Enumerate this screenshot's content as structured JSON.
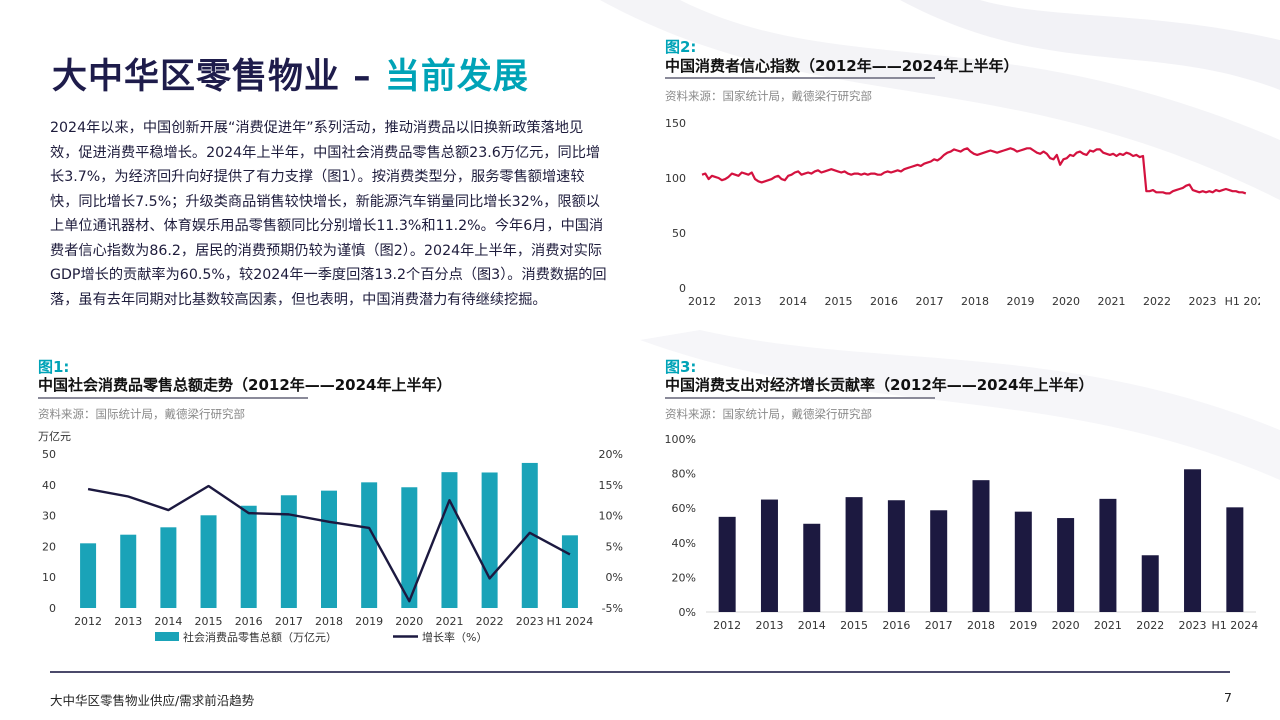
{
  "title": {
    "main": "大中华区零售物业 – ",
    "accent": "当前发展"
  },
  "body_text": "2024年以来，中国创新开展“消费促进年”系列活动，推动消费品以旧换新政策落地见效，促进消费平稳增长。2024年上半年，中国社会消费品零售总额23.6万亿元，同比增长3.7%，为经济回升向好提供了有力支撑（图1）。按消费类型分，服务零售额增速较快，同比增长7.5%；升级类商品销售较快增长，新能源汽车销量同比增长32%，限额以上单位通讯器材、体育娱乐用品零售额同比分别增长11.3%和11.2%。今年6月，中国消费者信心指数为86.2，居民的消费预期仍较为谨慎（图2）。2024年上半年，消费对实际GDP增长的贡献率为60.5%，较2024年一季度回落13.2个百分点（图3）。消费数据的回落，虽有去年同期对比基数较高因素，但也表明，中国消费潜力有待继续挖掘。",
  "fig1": {
    "label": "图1:",
    "title": "中国社会消费品零售总额走势（2012年——2024年上半年）",
    "source": "资料来源：国际统计局，戴德梁行研究部",
    "unit": "万亿元"
  },
  "fig2": {
    "label": "图2:",
    "title": "中国消费者信心指数（2012年——2024年上半年）",
    "source": "资料来源：国家统计局，戴德梁行研究部"
  },
  "fig3": {
    "label": "图3:",
    "title": "中国消费支出对经济增长贡献率（2012年——2024年上半年）",
    "source": "资料来源：国家统计局，戴德梁行研究部"
  },
  "footer": {
    "text": "大中华区零售物业供应/需求前沿趋势",
    "page": "7"
  },
  "colors": {
    "accent": "#00a3b7",
    "navy": "#1e1c4b",
    "teal_bar": "#1aa3b8",
    "red_line": "#d4123f",
    "dark_bar": "#1c1940"
  },
  "chart_data": [
    {
      "id": "fig1",
      "type": "bar+line",
      "categories": [
        "2012",
        "2013",
        "2014",
        "2015",
        "2016",
        "2017",
        "2018",
        "2019",
        "2020",
        "2021",
        "2022",
        "2023",
        "H1 2024"
      ],
      "series": [
        {
          "name": "社会消费品零售总额（万亿元）",
          "type": "bar",
          "axis": "left",
          "values": [
            21.0,
            23.8,
            26.2,
            30.1,
            33.2,
            36.6,
            38.1,
            40.8,
            39.2,
            44.1,
            44.0,
            47.1,
            23.6
          ]
        },
        {
          "name": "增长率（%）",
          "type": "line",
          "axis": "right",
          "values": [
            14.3,
            13.1,
            10.9,
            14.8,
            10.4,
            10.2,
            9.0,
            8.0,
            -3.9,
            12.5,
            -0.2,
            7.2,
            3.7
          ]
        }
      ],
      "left_ticks": [
        "0",
        "10",
        "20",
        "30",
        "40",
        "50"
      ],
      "ylim_left": [
        0,
        50
      ],
      "right_ticks": [
        "-5%",
        "0%",
        "5%",
        "10%",
        "15%",
        "20%"
      ],
      "ylim_right": [
        -5,
        20
      ],
      "legend_position": "bottom"
    },
    {
      "id": "fig2",
      "type": "line",
      "x_ticks": [
        "2012",
        "2013",
        "2014",
        "2015",
        "2016",
        "2017",
        "2018",
        "2019",
        "2020",
        "2021",
        "2022",
        "2023",
        "H1 2024"
      ],
      "ylim": [
        0,
        150
      ],
      "y_ticks": [
        "0",
        "50",
        "100",
        "150"
      ],
      "values": [
        103,
        104,
        99,
        102,
        101,
        100,
        98,
        99,
        101,
        104,
        103,
        102,
        105,
        104,
        103,
        105,
        99,
        97,
        96,
        97,
        98,
        99,
        101,
        102,
        99,
        98,
        102,
        103,
        105,
        106,
        103,
        104,
        105,
        104,
        106,
        107,
        105,
        106,
        107,
        108,
        107,
        106,
        105,
        106,
        104,
        103,
        104,
        104,
        103,
        104,
        103,
        104,
        104,
        103,
        103,
        105,
        106,
        105,
        106,
        107,
        106,
        108,
        109,
        110,
        111,
        112,
        111,
        113,
        114,
        115,
        117,
        116,
        118,
        121,
        123,
        124,
        126,
        125,
        124,
        126,
        127,
        124,
        122,
        121,
        122,
        123,
        124,
        125,
        124,
        123,
        124,
        125,
        126,
        127,
        126,
        124,
        125,
        126,
        127,
        127,
        125,
        123,
        122,
        124,
        122,
        118,
        117,
        121,
        112,
        117,
        118,
        121,
        120,
        123,
        124,
        122,
        121,
        125,
        124,
        126,
        126,
        123,
        122,
        121,
        122,
        120,
        122,
        121,
        123,
        122,
        120,
        121,
        119,
        120,
        88,
        88,
        89,
        87,
        87,
        87,
        86,
        86,
        88,
        89,
        90,
        91,
        93,
        94,
        89,
        88,
        87,
        88,
        87,
        88,
        87,
        89,
        88,
        89,
        90,
        89,
        88,
        88,
        87,
        87,
        86
      ]
    },
    {
      "id": "fig3",
      "type": "bar",
      "categories": [
        "2012",
        "2013",
        "2014",
        "2015",
        "2016",
        "2017",
        "2018",
        "2019",
        "2020",
        "2021",
        "2022",
        "2023",
        "H1 2024"
      ],
      "values": [
        55,
        65,
        51,
        66.4,
        64.6,
        58.8,
        76.2,
        58,
        54.3,
        65.4,
        32.8,
        82.5,
        60.5
      ],
      "ylim": [
        0,
        100
      ],
      "y_ticks": [
        "0%",
        "20%",
        "40%",
        "60%",
        "80%",
        "100%"
      ]
    }
  ]
}
